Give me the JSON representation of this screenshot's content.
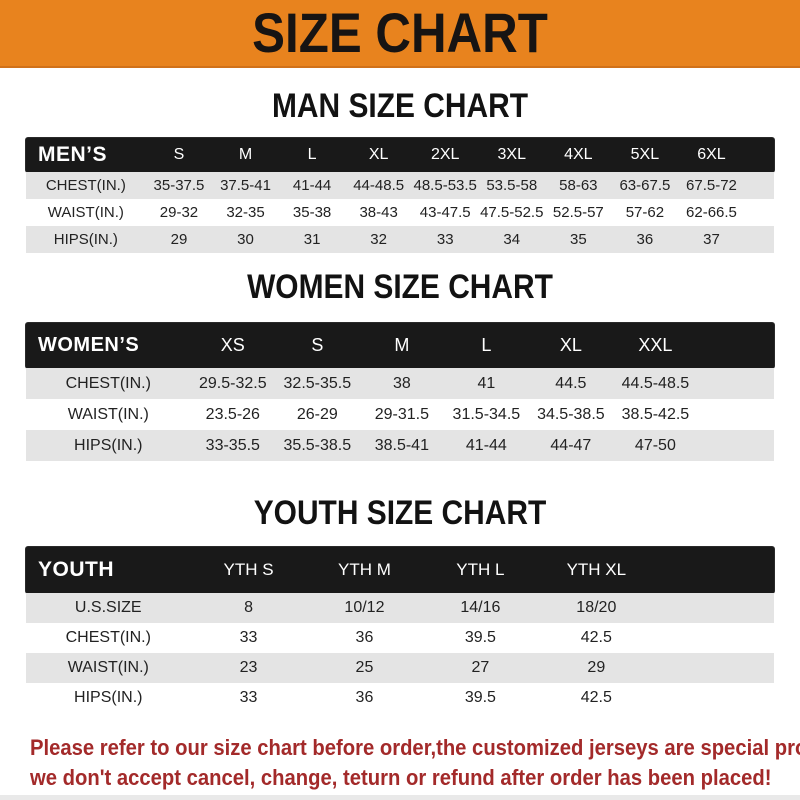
{
  "banner": {
    "title": "SIZE CHART"
  },
  "colors": {
    "banner_orange": "#E8831E",
    "header_bar_black": "#191919",
    "stripe_gray": "#E4E4E4",
    "footer_red": "#A32A2A"
  },
  "chart_data": [
    {
      "type": "table",
      "title": "MAN SIZE CHART",
      "header_label": "MEN’S",
      "columns": [
        "S",
        "M",
        "L",
        "XL",
        "2XL",
        "3XL",
        "4XL",
        "5XL",
        "6XL"
      ],
      "rows": [
        {
          "label": "CHEST(IN.)",
          "values": [
            "35-37.5",
            "37.5-41",
            "41-44",
            "44-48.5",
            "48.5-53.5",
            "53.5-58",
            "58-63",
            "63-67.5",
            "67.5-72"
          ]
        },
        {
          "label": "WAIST(IN.)",
          "values": [
            "29-32",
            "32-35",
            "35-38",
            "38-43",
            "43-47.5",
            "47.5-52.5",
            "52.5-57",
            "57-62",
            "62-66.5"
          ]
        },
        {
          "label": "HIPS(IN.)",
          "values": [
            "29",
            "30",
            "31",
            "32",
            "33",
            "34",
            "35",
            "36",
            "37"
          ]
        }
      ]
    },
    {
      "type": "table",
      "title": "WOMEN SIZE CHART",
      "header_label": "WOMEN’S",
      "columns": [
        "XS",
        "S",
        "M",
        "L",
        "XL",
        "XXL"
      ],
      "rows": [
        {
          "label": "CHEST(IN.)",
          "values": [
            "29.5-32.5",
            "32.5-35.5",
            "38",
            "41",
            "44.5",
            "44.5-48.5"
          ]
        },
        {
          "label": "WAIST(IN.)",
          "values": [
            "23.5-26",
            "26-29",
            "29-31.5",
            "31.5-34.5",
            "34.5-38.5",
            "38.5-42.5"
          ]
        },
        {
          "label": "HIPS(IN.)",
          "values": [
            "33-35.5",
            "35.5-38.5",
            "38.5-41",
            "41-44",
            "44-47",
            "47-50"
          ]
        }
      ]
    },
    {
      "type": "table",
      "title": "YOUTH SIZE CHART",
      "header_label": "YOUTH",
      "columns": [
        "YTH S",
        "YTH M",
        "YTH L",
        "YTH XL"
      ],
      "rows": [
        {
          "label": "U.S.SIZE",
          "values": [
            "8",
            "10/12",
            "14/16",
            "18/20"
          ]
        },
        {
          "label": "CHEST(IN.)",
          "values": [
            "33",
            "36",
            "39.5",
            "42.5"
          ]
        },
        {
          "label": "WAIST(IN.)",
          "values": [
            "23",
            "25",
            "27",
            "29"
          ]
        },
        {
          "label": "HIPS(IN.)",
          "values": [
            "33",
            "36",
            "39.5",
            "42.5"
          ]
        }
      ]
    }
  ],
  "footer": {
    "line1": "Please refer to our size chart before order,the customized jerseys are special products,",
    "line2": "we don't accept cancel, change, teturn or refund after order has been placed!"
  }
}
